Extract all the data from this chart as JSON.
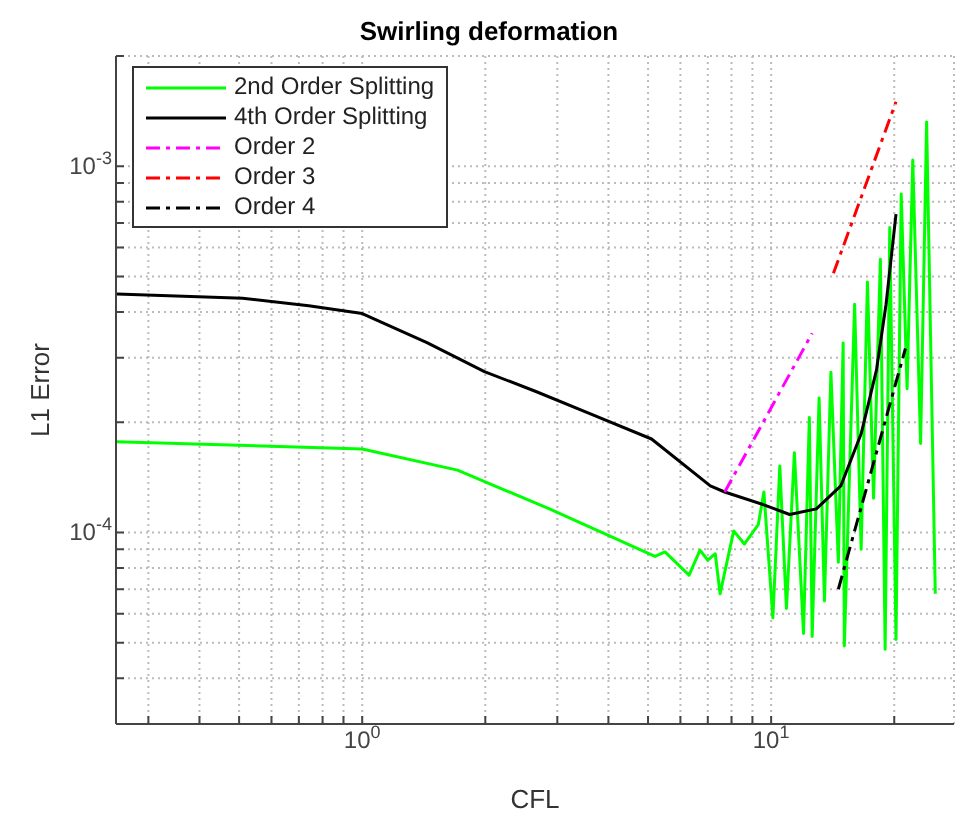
{
  "chart_data": {
    "type": "line",
    "title": "Swirling deformation",
    "xlabel": "CFL",
    "ylabel": "L1 Error",
    "log": "xy",
    "grid": true,
    "legend": "top left",
    "xlim": [
      0.25,
      28
    ],
    "ylim": [
      3e-05,
      0.002
    ],
    "xticks": [
      {
        "value": 0.3,
        "label": null
      },
      {
        "value": 0.4,
        "label": null
      },
      {
        "value": 0.5,
        "label": null
      },
      {
        "value": 0.6,
        "label": null
      },
      {
        "value": 0.7,
        "label": null
      },
      {
        "value": 0.8,
        "label": null
      },
      {
        "value": 0.9,
        "label": null
      },
      {
        "value": 1,
        "label": "10$^{0}$"
      },
      {
        "value": 2,
        "label": null
      },
      {
        "value": 3,
        "label": null
      },
      {
        "value": 4,
        "label": null
      },
      {
        "value": 5,
        "label": null
      },
      {
        "value": 6,
        "label": null
      },
      {
        "value": 7,
        "label": null
      },
      {
        "value": 8,
        "label": null
      },
      {
        "value": 9,
        "label": null
      },
      {
        "value": 10,
        "label": "10$^{1}$"
      },
      {
        "value": 20,
        "label": null
      }
    ],
    "yticks": [
      {
        "value": 4e-05,
        "label": null
      },
      {
        "value": 5e-05,
        "label": null
      },
      {
        "value": 6e-05,
        "label": null
      },
      {
        "value": 7e-05,
        "label": null
      },
      {
        "value": 8e-05,
        "label": null
      },
      {
        "value": 9e-05,
        "label": null
      },
      {
        "value": 0.0001,
        "label": "10$^{-4}$"
      },
      {
        "value": 0.0002,
        "label": null
      },
      {
        "value": 0.0003,
        "label": null
      },
      {
        "value": 0.0004,
        "label": null
      },
      {
        "value": 0.0005,
        "label": null
      },
      {
        "value": 0.0006,
        "label": null
      },
      {
        "value": 0.0007,
        "label": null
      },
      {
        "value": 0.0008,
        "label": null
      },
      {
        "value": 0.0009,
        "label": null
      },
      {
        "value": 0.001,
        "label": "10$^{-3}$"
      },
      {
        "value": 0.002,
        "label": null
      }
    ],
    "series": [
      {
        "name": "2nd Order Splitting",
        "color": "#00ff00",
        "line_style": "solid",
        "x": [
          0.251,
          1,
          1.71,
          2.87,
          5.2,
          5.5,
          6.3,
          6.7,
          7.0,
          7.3,
          7.5,
          8.1,
          8.6,
          9.3,
          9.6,
          10.1,
          10.5,
          10.9,
          11.4,
          12.0,
          12.4,
          12.6,
          13.1,
          13.5,
          14.0,
          14.6,
          15.0,
          15.1,
          16.0,
          16.6,
          17.2,
          17.8,
          18.5,
          19.0,
          19.5,
          20.2,
          20.8,
          21.5,
          22.2,
          23.2,
          24.0,
          25.2
        ],
        "values": [
          0.000177,
          0.000169,
          0.000148,
          0.000116,
          8.6e-05,
          8.85e-05,
          7.65e-05,
          8.95e-05,
          8.4e-05,
          8.75e-05,
          6.8e-05,
          0.000101,
          9.3e-05,
          0.000105,
          0.000129,
          5.85e-05,
          0.000152,
          6.2e-05,
          0.000165,
          5.3e-05,
          0.000206,
          5.2e-05,
          0.000233,
          6.5e-05,
          0.000274,
          8.3e-05,
          0.000329,
          4.9e-05,
          0.00042,
          9e-05,
          0.000483,
          0.000124,
          0.000557,
          4.8e-05,
          0.00068,
          5.1e-05,
          0.00084,
          0.000247,
          0.00104,
          0.000175,
          0.00132,
          6.8e-05
        ]
      },
      {
        "name": "4th Order Splitting",
        "color": "#000000",
        "line_style": "solid",
        "x": [
          0.251,
          0.51,
          0.74,
          1,
          1.44,
          1.99,
          2.65,
          3.64,
          5.1,
          7.1,
          7.7,
          9.6,
          11.1,
          12.9,
          14.8,
          16.6,
          18.1,
          19.1,
          20.2
        ],
        "values": [
          0.000448,
          0.000436,
          0.000416,
          0.000396,
          0.00033,
          0.000275,
          0.000243,
          0.00021,
          0.00018,
          0.000134,
          0.000129,
          0.000119,
          0.000112,
          0.000116,
          0.000134,
          0.000186,
          0.000278,
          0.00042,
          0.00074
        ]
      },
      {
        "name": "Order 2",
        "color": "#ff00ff",
        "line_style": "dashed",
        "x": [
          7.7,
          12.6
        ],
        "values": [
          0.000129,
          0.00035
        ]
      },
      {
        "name": "Order 3",
        "color": "#ff0000",
        "line_style": "dashed",
        "x": [
          14.2,
          20.2
        ],
        "values": [
          0.00051,
          0.0015
        ]
      },
      {
        "name": "Order 4",
        "color": "#000000",
        "line_style": "dashed",
        "x": [
          14.6,
          21.3
        ],
        "values": [
          7e-05,
          0.000318
        ]
      }
    ]
  }
}
